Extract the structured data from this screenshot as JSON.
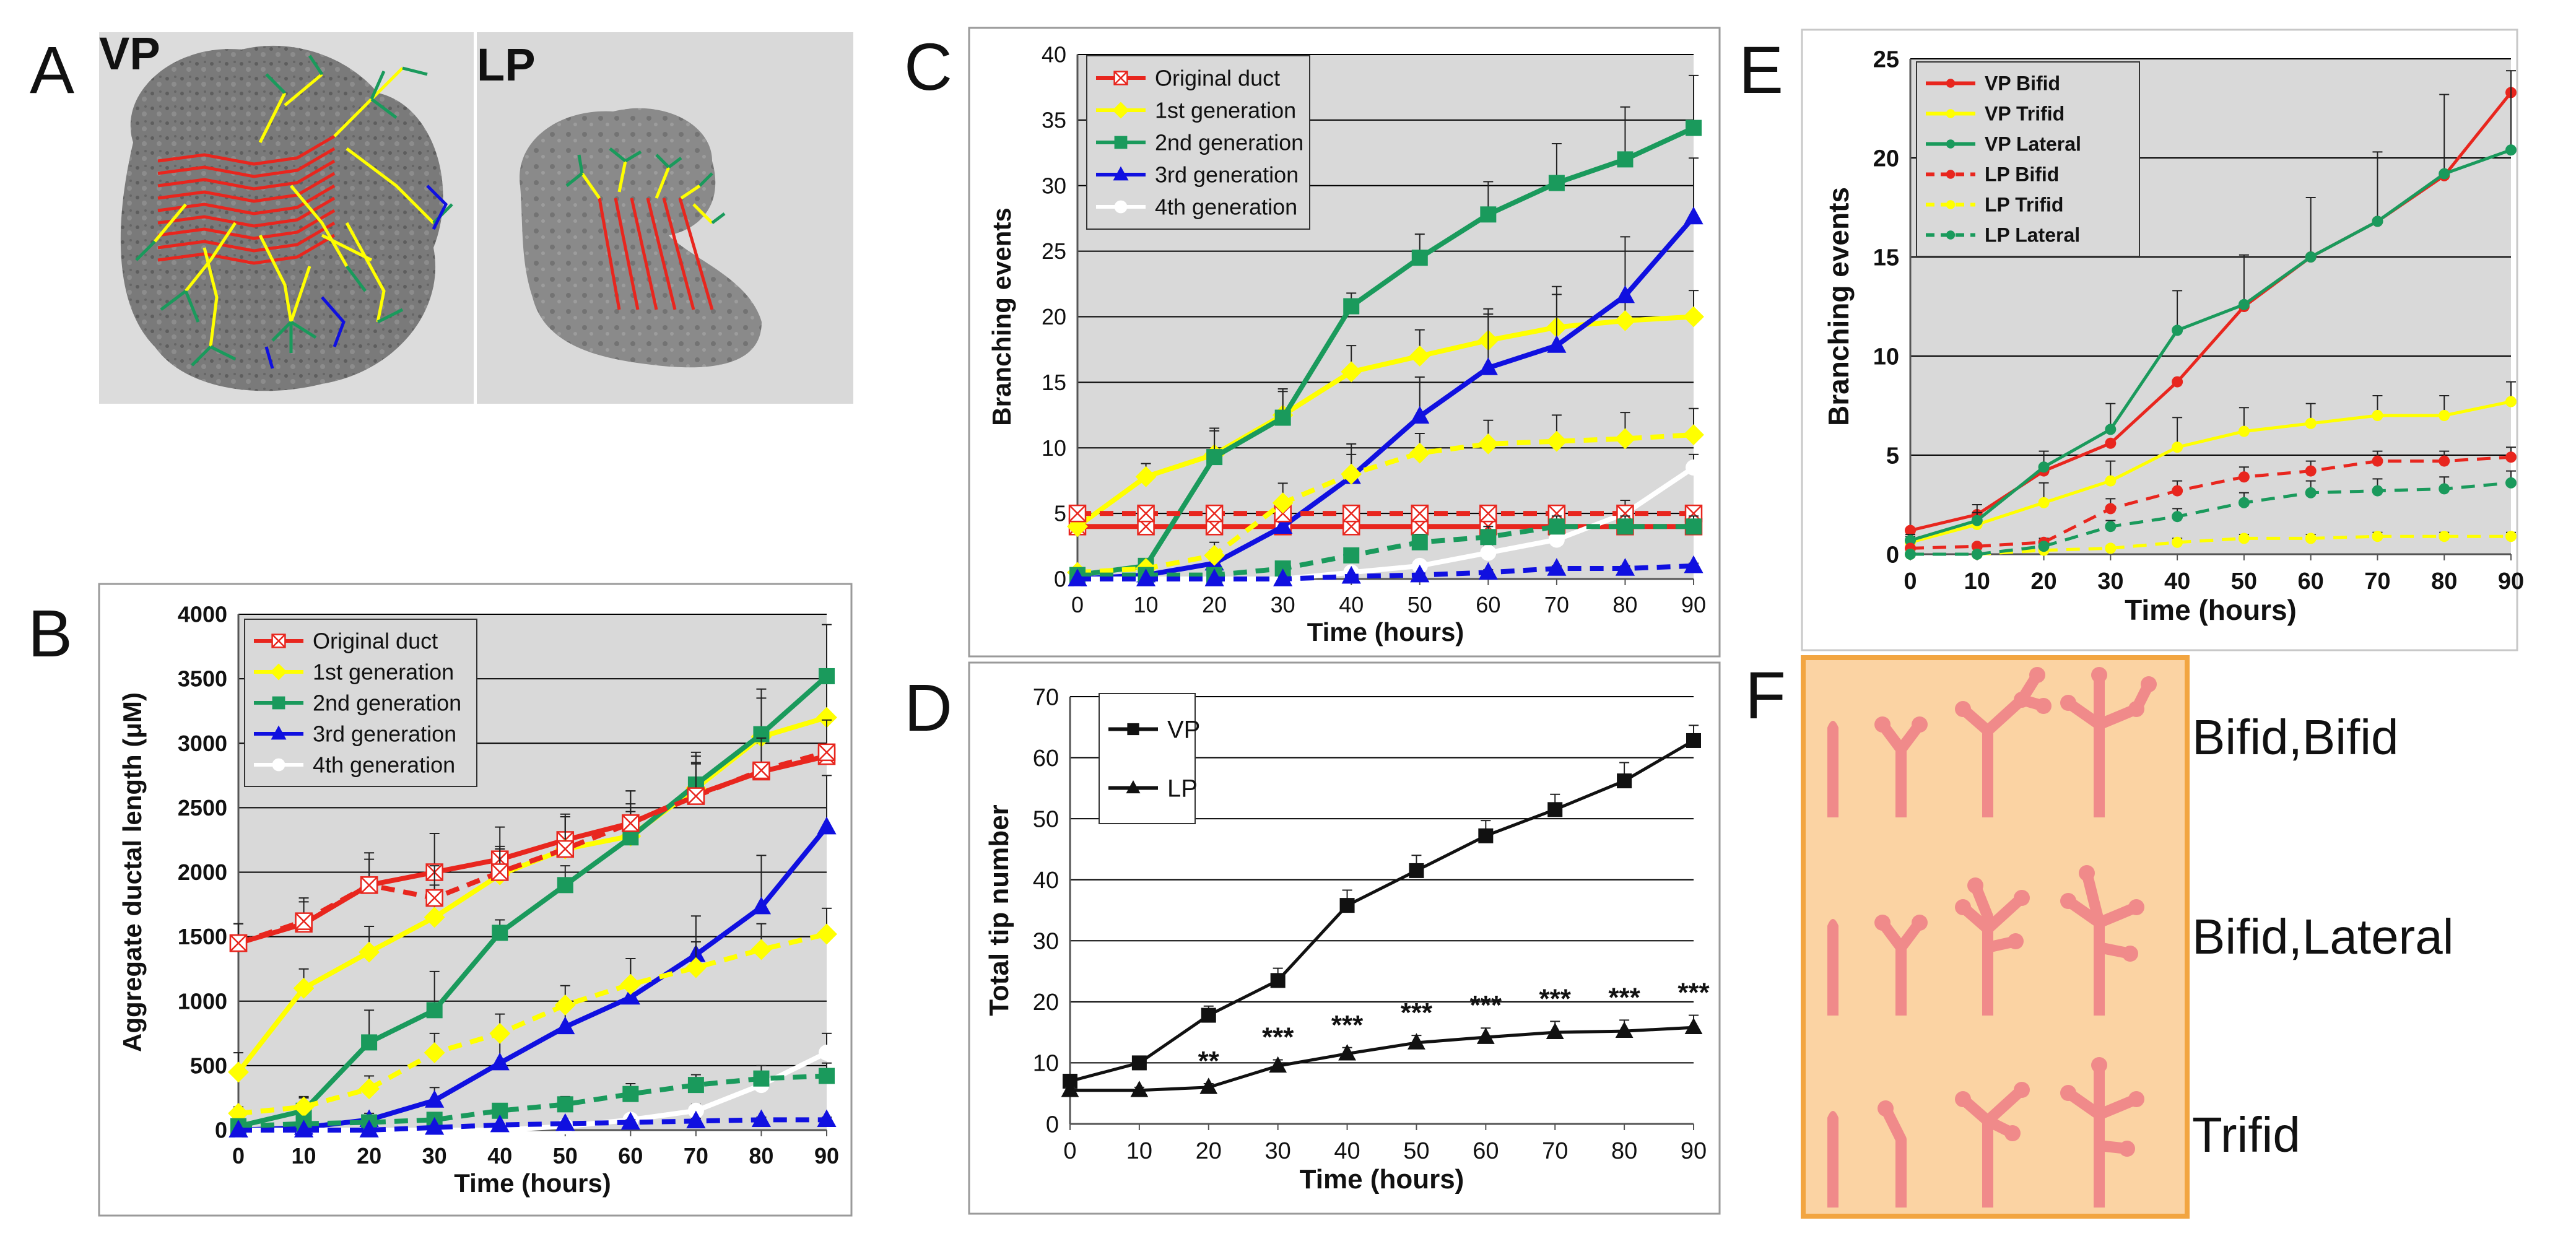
{
  "panel_labels": {
    "A": "A",
    "B": "B",
    "C": "C",
    "D": "D",
    "E": "E",
    "F": "F"
  },
  "panel_a": {
    "vp_label": "VP",
    "lp_label": "LP"
  },
  "panel_f": {
    "rows": [
      "Bifid,Bifid",
      "Bifid,Lateral",
      "Trifid"
    ]
  },
  "colors": {
    "red": "#e8261e",
    "yellow": "#ffff00",
    "green": "#1a9a5c",
    "blue": "#1010e0",
    "white": "#ffffff",
    "black": "#111111",
    "plot_bg": "#d9d9d9",
    "f_bg": "#fbd3a3"
  },
  "chart_data": [
    {
      "id": "B",
      "type": "line",
      "xlabel": "Time (hours)",
      "ylabel": "Aggregate ductal length (μM)",
      "x": [
        0,
        10,
        20,
        30,
        40,
        50,
        60,
        70,
        80,
        90
      ],
      "xlim": [
        0,
        90
      ],
      "ylim": [
        0,
        4000
      ],
      "xticks": [
        0,
        10,
        20,
        30,
        40,
        50,
        60,
        70,
        80,
        90
      ],
      "yticks": [
        0,
        500,
        1000,
        1500,
        2000,
        2500,
        3000,
        3500,
        4000
      ],
      "grid": true,
      "legend": "top-left",
      "series": [
        {
          "name": "Original duct",
          "group": "VP",
          "color": "red",
          "marker": "x-square",
          "dash": false,
          "values": [
            1450,
            1600,
            1900,
            2000,
            2100,
            2250,
            2380,
            2600,
            2780,
            2900
          ],
          "err": [
            150,
            200,
            250,
            300,
            250,
            200,
            250,
            250,
            300,
            300
          ]
        },
        {
          "name": "1st generation",
          "group": "VP",
          "color": "yellow",
          "marker": "diamond",
          "dash": false,
          "values": [
            450,
            1100,
            1380,
            1650,
            1980,
            2180,
            2280,
            2650,
            3050,
            3200
          ],
          "err": [
            150,
            150,
            200,
            250,
            200,
            250,
            250,
            250,
            300,
            300
          ]
        },
        {
          "name": "2nd generation",
          "group": "VP",
          "color": "green",
          "marker": "square",
          "dash": false,
          "values": [
            30,
            150,
            680,
            930,
            1530,
            1900,
            2270,
            2680,
            3070,
            3520
          ],
          "err": [
            50,
            100,
            250,
            300,
            100,
            150,
            200,
            250,
            350,
            400
          ]
        },
        {
          "name": "3rd generation",
          "group": "VP",
          "color": "blue",
          "marker": "triangle",
          "dash": false,
          "values": [
            0,
            20,
            80,
            230,
            520,
            800,
            1030,
            1360,
            1730,
            2350
          ],
          "err": [
            0,
            20,
            50,
            100,
            200,
            200,
            300,
            300,
            400,
            400
          ]
        },
        {
          "name": "4th generation",
          "group": "VP",
          "color": "white",
          "marker": "circle",
          "dash": false,
          "values": [
            0,
            0,
            0,
            0,
            0,
            30,
            80,
            150,
            350,
            600
          ],
          "err": [
            0,
            0,
            0,
            0,
            0,
            20,
            30,
            50,
            100,
            150
          ]
        },
        {
          "group": "LP",
          "color": "red",
          "marker": "x-square",
          "dash": true,
          "values": [
            1450,
            1620,
            1900,
            1800,
            2000,
            2180,
            2380,
            2590,
            2790,
            2930
          ],
          "err": [
            150,
            150,
            200,
            250,
            200,
            250,
            250,
            250,
            250,
            250
          ]
        },
        {
          "group": "LP",
          "color": "yellow",
          "marker": "diamond",
          "dash": true,
          "values": [
            130,
            180,
            320,
            600,
            750,
            970,
            1130,
            1260,
            1400,
            1520
          ],
          "err": [
            50,
            80,
            100,
            150,
            150,
            150,
            200,
            200,
            200,
            200
          ]
        },
        {
          "group": "LP",
          "color": "green",
          "marker": "square",
          "dash": true,
          "values": [
            30,
            50,
            60,
            80,
            150,
            200,
            280,
            350,
            400,
            420
          ],
          "err": [
            20,
            30,
            30,
            40,
            50,
            60,
            80,
            80,
            100,
            100
          ]
        },
        {
          "group": "LP",
          "color": "blue",
          "marker": "triangle",
          "dash": true,
          "values": [
            0,
            0,
            0,
            20,
            40,
            50,
            60,
            70,
            80,
            80
          ],
          "err": [
            0,
            0,
            0,
            10,
            10,
            10,
            20,
            20,
            20,
            20
          ]
        }
      ]
    },
    {
      "id": "C",
      "type": "line",
      "xlabel": "Time (hours)",
      "ylabel": "Branching events",
      "x": [
        0,
        10,
        20,
        30,
        40,
        50,
        60,
        70,
        80,
        90
      ],
      "xlim": [
        0,
        90
      ],
      "ylim": [
        0,
        40
      ],
      "xticks": [
        0,
        10,
        20,
        30,
        40,
        50,
        60,
        70,
        80,
        90
      ],
      "yticks": [
        0,
        5,
        10,
        15,
        20,
        25,
        30,
        35,
        40
      ],
      "grid": true,
      "legend": "top-left",
      "series": [
        {
          "name": "Original duct",
          "group": "VP",
          "color": "red",
          "marker": "x-square",
          "dash": false,
          "values": [
            4,
            4,
            4,
            4,
            4,
            4,
            4,
            4,
            4,
            4
          ],
          "err": [
            0,
            0,
            0,
            0,
            0,
            0,
            0,
            0,
            0,
            0
          ]
        },
        {
          "name": "1st generation",
          "group": "VP",
          "color": "yellow",
          "marker": "diamond",
          "dash": false,
          "values": [
            4,
            7.8,
            9.5,
            12.5,
            15.8,
            17,
            18.2,
            19.2,
            19.7,
            20
          ],
          "err": [
            0.5,
            1,
            2,
            2,
            2,
            2,
            2,
            2.5,
            2,
            2
          ]
        },
        {
          "name": "2nd generation",
          "group": "VP",
          "color": "green",
          "marker": "square",
          "dash": false,
          "values": [
            0.3,
            1,
            9.3,
            12.3,
            20.8,
            24.5,
            27.8,
            30.2,
            32,
            34.4
          ],
          "err": [
            0.2,
            0.5,
            2,
            2,
            1,
            1.8,
            2.5,
            3,
            4,
            4
          ]
        },
        {
          "name": "3rd generation",
          "group": "VP",
          "color": "blue",
          "marker": "triangle",
          "dash": false,
          "values": [
            0,
            0.3,
            1.2,
            4,
            7.8,
            12.4,
            16.1,
            17.8,
            21.6,
            27.6
          ],
          "err": [
            0,
            0.2,
            1,
            1.5,
            2.5,
            3,
            4.5,
            4.5,
            4.5,
            4.5
          ]
        },
        {
          "name": "4th generation",
          "group": "VP",
          "color": "white",
          "marker": "circle",
          "dash": false,
          "values": [
            0,
            0,
            0,
            0,
            0.5,
            1,
            2,
            3,
            5,
            8.5
          ],
          "err": [
            0,
            0,
            0,
            0,
            0.2,
            0.3,
            0.5,
            0.8,
            1,
            1
          ]
        },
        {
          "group": "LP",
          "color": "red",
          "marker": "x-square",
          "dash": true,
          "values": [
            5,
            5,
            5,
            5,
            5,
            5,
            5,
            5,
            5,
            5
          ],
          "err": [
            0,
            0,
            0,
            0,
            0,
            0,
            0,
            0,
            0,
            0
          ]
        },
        {
          "group": "LP",
          "color": "yellow",
          "marker": "diamond",
          "dash": true,
          "values": [
            0.5,
            0.8,
            1.8,
            5.8,
            8,
            9.6,
            10.3,
            10.5,
            10.7,
            11
          ],
          "err": [
            0.2,
            0.4,
            1,
            1.5,
            1.5,
            1.5,
            1.8,
            2,
            2,
            2
          ]
        },
        {
          "group": "LP",
          "color": "green",
          "marker": "square",
          "dash": true,
          "values": [
            0.3,
            0.3,
            0.3,
            0.8,
            1.8,
            2.8,
            3.2,
            4,
            4,
            4
          ],
          "err": [
            0.1,
            0.1,
            0.1,
            0.3,
            0.5,
            0.6,
            0.8,
            0.8,
            0.8,
            0.8
          ]
        },
        {
          "group": "LP",
          "color": "blue",
          "marker": "triangle",
          "dash": true,
          "values": [
            0,
            0,
            0,
            0,
            0.2,
            0.3,
            0.5,
            0.8,
            0.8,
            1
          ],
          "err": [
            0,
            0,
            0,
            0,
            0.1,
            0.1,
            0.2,
            0.2,
            0.2,
            0.2
          ]
        }
      ]
    },
    {
      "id": "D",
      "type": "line",
      "xlabel": "Time (hours)",
      "ylabel": "Total tip number",
      "x": [
        0,
        10,
        20,
        30,
        40,
        50,
        60,
        70,
        80,
        90
      ],
      "xlim": [
        0,
        90
      ],
      "ylim": [
        0,
        70
      ],
      "xticks": [
        0,
        10,
        20,
        30,
        40,
        50,
        60,
        70,
        80,
        90
      ],
      "yticks": [
        0,
        10,
        20,
        30,
        40,
        50,
        60,
        70
      ],
      "grid": true,
      "legend": "top-left",
      "series": [
        {
          "name": "VP",
          "color": "black",
          "marker": "square",
          "dash": false,
          "values": [
            7,
            10,
            17.8,
            23.5,
            35.8,
            41.5,
            47.2,
            51.5,
            56.2,
            62.8
          ],
          "err": [
            1,
            1,
            1.5,
            2,
            2.5,
            2.5,
            2.5,
            2.5,
            3,
            2.5
          ]
        },
        {
          "name": "LP",
          "color": "black",
          "marker": "triangle",
          "dash": false,
          "values": [
            5.5,
            5.5,
            6,
            9.5,
            11.5,
            13.3,
            14.2,
            15,
            15.2,
            15.8
          ],
          "err": [
            0.5,
            0.5,
            0.6,
            1,
            1,
            1.2,
            1.5,
            1.8,
            1.8,
            2
          ]
        }
      ],
      "annotations": [
        {
          "x": 20,
          "text": "**"
        },
        {
          "x": 30,
          "text": "***"
        },
        {
          "x": 40,
          "text": "***"
        },
        {
          "x": 50,
          "text": "***"
        },
        {
          "x": 60,
          "text": "***"
        },
        {
          "x": 70,
          "text": "***"
        },
        {
          "x": 80,
          "text": "***"
        },
        {
          "x": 90,
          "text": "***"
        }
      ]
    },
    {
      "id": "E",
      "type": "line",
      "xlabel": "Time (hours)",
      "ylabel": "Branching events",
      "x": [
        0,
        10,
        20,
        30,
        40,
        50,
        60,
        70,
        80,
        90
      ],
      "xlim": [
        0,
        90
      ],
      "ylim": [
        0,
        25
      ],
      "xticks": [
        0,
        10,
        20,
        30,
        40,
        50,
        60,
        70,
        80,
        90
      ],
      "yticks": [
        0,
        5,
        10,
        15,
        20,
        25
      ],
      "grid": true,
      "legend": "top-left",
      "series": [
        {
          "name": "VP Bifid",
          "color": "red",
          "marker": "circle",
          "dash": false,
          "values": [
            1.2,
            2,
            4.2,
            5.6,
            8.7,
            12.5,
            15,
            16.8,
            19.1,
            23.3
          ],
          "err": [
            0,
            0,
            0,
            0,
            0,
            0,
            0,
            0,
            0,
            0
          ]
        },
        {
          "name": "VP Trifid",
          "color": "yellow",
          "marker": "circle",
          "dash": false,
          "values": [
            0.6,
            1.5,
            2.6,
            3.7,
            5.4,
            6.2,
            6.6,
            7,
            7,
            7.7
          ],
          "err": [
            0.3,
            0.6,
            1,
            1,
            1.5,
            1.2,
            1,
            1,
            1,
            1
          ]
        },
        {
          "name": "VP Lateral",
          "color": "green",
          "marker": "circle",
          "dash": false,
          "values": [
            0.7,
            1.7,
            4.4,
            6.3,
            11.3,
            12.6,
            15,
            16.8,
            19.2,
            20.4
          ],
          "err": [
            0.3,
            0.8,
            0.8,
            1.3,
            2,
            2.5,
            3,
            3.5,
            4,
            4
          ]
        },
        {
          "name": "LP Bifid",
          "color": "red",
          "marker": "circle",
          "dash": true,
          "values": [
            0.3,
            0.4,
            0.6,
            2.3,
            3.2,
            3.9,
            4.2,
            4.7,
            4.7,
            4.9
          ],
          "err": [
            0.1,
            0.1,
            0.2,
            0.5,
            0.5,
            0.5,
            0.5,
            0.5,
            0.5,
            0.5
          ]
        },
        {
          "name": "LP Trifid",
          "color": "yellow",
          "marker": "circle",
          "dash": true,
          "values": [
            0,
            0,
            0.2,
            0.3,
            0.6,
            0.8,
            0.8,
            0.9,
            0.9,
            0.9
          ],
          "err": [
            0,
            0,
            0.1,
            0.1,
            0.2,
            0.2,
            0.2,
            0.2,
            0.2,
            0.2
          ]
        },
        {
          "name": "LP Lateral",
          "color": "green",
          "marker": "circle",
          "dash": true,
          "values": [
            0,
            0,
            0.4,
            1.4,
            1.9,
            2.6,
            3.1,
            3.2,
            3.3,
            3.6
          ],
          "err": [
            0,
            0,
            0.1,
            0.3,
            0.4,
            0.5,
            0.6,
            0.6,
            0.6,
            0.6
          ]
        }
      ]
    }
  ]
}
